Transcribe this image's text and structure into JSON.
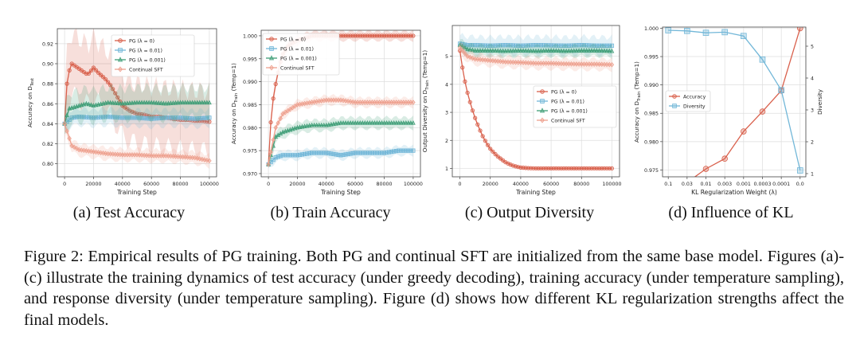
{
  "subcaptions": {
    "a": "(a) Test Accuracy",
    "b": "(b) Train Accuracy",
    "c": "(c) Output Diversity",
    "d": "(d) Influence of KL"
  },
  "caption": "Figure 2: Empirical results of PG training. Both PG and continual SFT are initialized from the same base model. Figures (a)-(c) illustrate the training dynamics of test accuracy (under greedy decoding), training accuracy (under temperature sampling), and response diversity (under temperature sampling). Figure (d) shows how different KL regularization strengths affect the final models.",
  "colors": {
    "pg0": "#d9604c",
    "pg001": "#72b7d8",
    "pg0001": "#3f9e77",
    "sft": "#eea08e"
  },
  "chart_data": [
    {
      "id": "a",
      "type": "line",
      "xlabel": "Training Step",
      "ylabel": "Accuracy on D_Test",
      "xlim": [
        -5000,
        105000
      ],
      "ylim": [
        0.787,
        0.935
      ],
      "xticks": [
        0,
        20000,
        40000,
        60000,
        80000,
        100000
      ],
      "xtick_labels": [
        "0",
        "20000",
        "40000",
        "60000",
        "80000",
        "100000"
      ],
      "yticks": [
        0.8,
        0.82,
        0.84,
        0.86,
        0.88,
        0.9,
        0.92
      ],
      "ytick_labels": [
        "0.80",
        "0.82",
        "0.84",
        "0.86",
        "0.88",
        "0.90",
        "0.92"
      ],
      "legend": "top-right",
      "series": [
        {
          "name": "PG (λ = 0)",
          "color": "pg0",
          "marker": "circle",
          "x": [
            0,
            2000,
            5000,
            8000,
            12000,
            16000,
            20000,
            24000,
            28000,
            32000,
            36000,
            40000,
            45000,
            50000,
            55000,
            60000,
            65000,
            70000,
            75000,
            80000,
            85000,
            90000,
            95000,
            100000
          ],
          "y": [
            0.84,
            0.888,
            0.9,
            0.897,
            0.893,
            0.889,
            0.896,
            0.89,
            0.885,
            0.878,
            0.868,
            0.858,
            0.853,
            0.85,
            0.849,
            0.847,
            0.847,
            0.846,
            0.845,
            0.844,
            0.844,
            0.843,
            0.843,
            0.842
          ],
          "band": 0.03
        },
        {
          "name": "PG (λ = 0.01)",
          "color": "pg001",
          "marker": "square",
          "x": [
            0,
            5000,
            10000,
            20000,
            30000,
            40000,
            50000,
            60000,
            70000,
            80000,
            90000,
            100000
          ],
          "y": [
            0.84,
            0.846,
            0.847,
            0.846,
            0.847,
            0.846,
            0.846,
            0.845,
            0.846,
            0.846,
            0.845,
            0.846
          ],
          "band": 0.008
        },
        {
          "name": "PG (λ = 0.001)",
          "color": "pg0001",
          "marker": "triangle",
          "x": [
            0,
            3000,
            8000,
            15000,
            20000,
            30000,
            40000,
            50000,
            60000,
            70000,
            80000,
            90000,
            100000
          ],
          "y": [
            0.84,
            0.855,
            0.857,
            0.86,
            0.858,
            0.861,
            0.86,
            0.861,
            0.861,
            0.86,
            0.861,
            0.861,
            0.861
          ],
          "band": 0.015
        },
        {
          "name": "Continual SFT",
          "color": "sft",
          "marker": "diamond",
          "x": [
            0,
            5000,
            10000,
            20000,
            30000,
            40000,
            50000,
            60000,
            70000,
            80000,
            90000,
            100000
          ],
          "y": [
            0.84,
            0.818,
            0.814,
            0.812,
            0.81,
            0.809,
            0.809,
            0.808,
            0.808,
            0.807,
            0.806,
            0.803
          ],
          "band": 0.006
        }
      ]
    },
    {
      "id": "b",
      "type": "line",
      "xlabel": "Training Step",
      "ylabel": "Accuracy on D_Train (Temp=1)",
      "xlim": [
        -5000,
        105000
      ],
      "ylim": [
        0.9693,
        1.0012
      ],
      "xticks": [
        0,
        20000,
        40000,
        60000,
        80000,
        100000
      ],
      "xtick_labels": [
        "0",
        "20000",
        "40000",
        "60000",
        "80000",
        "100000"
      ],
      "yticks": [
        0.97,
        0.975,
        0.98,
        0.985,
        0.99,
        0.995,
        1.0
      ],
      "ytick_labels": [
        "0.970",
        "0.975",
        "0.980",
        "0.985",
        "0.990",
        "0.995",
        "1.000"
      ],
      "legend": "top-left",
      "series": [
        {
          "name": "PG (λ = 0)",
          "color": "pg0",
          "marker": "circle",
          "x": [
            0,
            2000,
            4000,
            6000,
            8000,
            10000,
            14000,
            20000,
            30000,
            40000,
            50000,
            60000,
            70000,
            80000,
            90000,
            100000
          ],
          "y": [
            0.972,
            0.983,
            0.988,
            0.991,
            0.994,
            0.996,
            0.998,
            0.999,
            1.0,
            1.0,
            1.0,
            1.0,
            1.0,
            1.0,
            1.0,
            1.0
          ],
          "band": 0.001
        },
        {
          "name": "PG (λ = 0.01)",
          "color": "pg001",
          "marker": "square",
          "x": [
            0,
            5000,
            10000,
            20000,
            30000,
            40000,
            50000,
            60000,
            70000,
            80000,
            90000,
            100000
          ],
          "y": [
            0.972,
            0.9735,
            0.974,
            0.974,
            0.9745,
            0.9745,
            0.974,
            0.9745,
            0.9745,
            0.9745,
            0.975,
            0.975
          ],
          "band": 0.001
        },
        {
          "name": "PG (λ = 0.001)",
          "color": "pg0001",
          "marker": "triangle",
          "x": [
            0,
            5000,
            10000,
            20000,
            30000,
            40000,
            50000,
            60000,
            70000,
            80000,
            90000,
            100000
          ],
          "y": [
            0.972,
            0.978,
            0.979,
            0.98,
            0.9805,
            0.9805,
            0.981,
            0.981,
            0.981,
            0.981,
            0.981,
            0.981
          ],
          "band": 0.0012
        },
        {
          "name": "Continual SFT",
          "color": "sft",
          "marker": "diamond",
          "x": [
            0,
            5000,
            10000,
            20000,
            30000,
            40000,
            50000,
            60000,
            70000,
            80000,
            90000,
            100000
          ],
          "y": [
            0.972,
            0.98,
            0.983,
            0.985,
            0.9855,
            0.986,
            0.986,
            0.9855,
            0.9855,
            0.9855,
            0.9855,
            0.9855
          ],
          "band": 0.001
        }
      ]
    },
    {
      "id": "c",
      "type": "line",
      "xlabel": "Training Step",
      "ylabel": "Output Diversity on D_Train (Temp=1)",
      "xlim": [
        -5000,
        105000
      ],
      "ylim": [
        0.7,
        6.1
      ],
      "xticks": [
        0,
        20000,
        40000,
        60000,
        80000,
        100000
      ],
      "xtick_labels": [
        "0",
        "20000",
        "40000",
        "60000",
        "80000",
        "100000"
      ],
      "yticks": [
        1,
        2,
        3,
        4,
        5
      ],
      "ytick_labels": [
        "1",
        "2",
        "3",
        "4",
        "5"
      ],
      "legend": "center-right",
      "series": [
        {
          "name": "PG (λ = 0)",
          "color": "pg0",
          "marker": "circle",
          "x": [
            0,
            2500,
            5000,
            7500,
            10000,
            12500,
            15000,
            17500,
            20000,
            22500,
            25000,
            27500,
            30000,
            32500,
            35000,
            37500,
            40000,
            45000,
            50000,
            60000,
            70000,
            80000,
            90000,
            100000
          ],
          "y": [
            5.2,
            4.3,
            3.7,
            3.2,
            2.8,
            2.45,
            2.15,
            1.9,
            1.7,
            1.55,
            1.42,
            1.32,
            1.22,
            1.15,
            1.1,
            1.06,
            1.03,
            1.01,
            1.0,
            1.0,
            1.0,
            1.0,
            1.0,
            1.0
          ],
          "band": 0.05
        },
        {
          "name": "PG (λ = 0.01)",
          "color": "pg001",
          "marker": "square",
          "x": [
            0,
            5000,
            10000,
            20000,
            30000,
            40000,
            50000,
            60000,
            70000,
            80000,
            90000,
            100000
          ],
          "y": [
            5.45,
            5.4,
            5.4,
            5.38,
            5.4,
            5.38,
            5.4,
            5.39,
            5.38,
            5.4,
            5.38,
            5.38
          ],
          "band": 0.3
        },
        {
          "name": "PG (λ = 0.001)",
          "color": "pg0001",
          "marker": "triangle",
          "x": [
            0,
            5000,
            10000,
            20000,
            30000,
            40000,
            50000,
            60000,
            70000,
            80000,
            90000,
            100000
          ],
          "y": [
            5.4,
            5.25,
            5.2,
            5.2,
            5.18,
            5.2,
            5.18,
            5.2,
            5.18,
            5.2,
            5.2,
            5.18
          ],
          "band": 0.2
        },
        {
          "name": "Continual SFT",
          "color": "sft",
          "marker": "diamond",
          "x": [
            0,
            5000,
            10000,
            20000,
            30000,
            40000,
            50000,
            60000,
            70000,
            80000,
            90000,
            100000
          ],
          "y": [
            5.3,
            5.0,
            4.9,
            4.85,
            4.8,
            4.78,
            4.75,
            4.75,
            4.73,
            4.72,
            4.72,
            4.7
          ],
          "band": 0.2
        }
      ]
    },
    {
      "id": "d",
      "type": "line",
      "xlabel": "KL Regularization Weight (λ)",
      "ylabel": "Accuracy on D_Train (Temp=1)",
      "y2label": "Diversity",
      "categories": [
        "0.1",
        "0.03",
        "0.01",
        "0.003",
        "0.001",
        "0.0003",
        "0.0001",
        "0.0"
      ],
      "ylim": [
        0.9738,
        1.0002
      ],
      "y2lim": [
        0.9,
        5.6
      ],
      "yticks": [
        0.975,
        0.98,
        0.985,
        0.99,
        0.995,
        1.0
      ],
      "ytick_labels": [
        "0.975",
        "0.980",
        "0.985",
        "0.990",
        "0.995",
        "1.000"
      ],
      "y2ticks": [
        1,
        2,
        3,
        4,
        5
      ],
      "y2tick_labels": [
        "1",
        "2",
        "3",
        "4",
        "5"
      ],
      "legend": "center-left",
      "series": [
        {
          "name": "Accuracy",
          "color": "pg0",
          "marker": "circle",
          "axis": "left",
          "values": [
            0.973,
            0.9728,
            0.9752,
            0.977,
            0.9818,
            0.9853,
            0.989,
            1.0
          ]
        },
        {
          "name": "Diversity",
          "color": "pg001",
          "marker": "square",
          "axis": "right",
          "values": [
            5.5,
            5.48,
            5.42,
            5.44,
            5.32,
            4.58,
            3.62,
            1.1
          ]
        }
      ]
    }
  ]
}
